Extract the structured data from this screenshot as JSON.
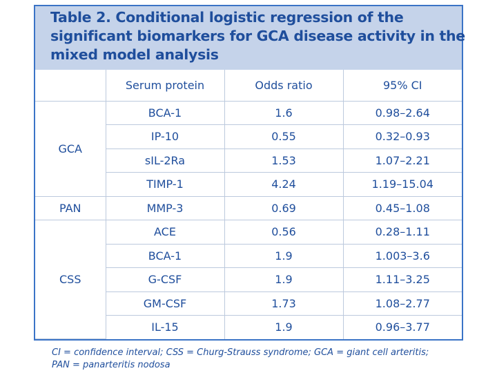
{
  "title": {
    "lines": [
      "Table 2. Conditional logistic regression of the",
      "significant biomarkers for GCA disease activity in the",
      "mixed model analysis"
    ]
  },
  "table": {
    "headers": [
      "",
      "Serum protein",
      "Odds ratio",
      "95% CI"
    ],
    "groups": [
      {
        "name": "GCA",
        "rows": [
          [
            "BCA-1",
            "1.6",
            "0.98–2.64"
          ],
          [
            "IP-10",
            "0.55",
            "0.32–0.93"
          ],
          [
            "sIL-2Ra",
            "1.53",
            "1.07–2.21"
          ],
          [
            "TIMP-1",
            "4.24",
            "1.19–15.04"
          ]
        ]
      },
      {
        "name": "PAN",
        "rows": [
          [
            "MMP-3",
            "0.69",
            "0.45–1.08"
          ]
        ]
      },
      {
        "name": "CSS",
        "rows": [
          [
            "ACE",
            "0.56",
            "0.28–1.11"
          ],
          [
            "BCA-1",
            "1.9",
            "1.003–3.6"
          ],
          [
            "G-CSF",
            "1.9",
            "1.11–3.25"
          ],
          [
            "GM-CSF",
            "1.73",
            "1.08–2.77"
          ],
          [
            "IL-15",
            "1.9",
            "0.96–3.77"
          ]
        ]
      }
    ]
  },
  "footnote": {
    "lines": [
      "CI = confidence interval; CSS = Churg-Strauss syndrome; GCA = giant cell arteritis;",
      "PAN = panarteritis nodosa"
    ]
  },
  "colors": {
    "text": "#1f4e9c",
    "panel": "#c5d3ea",
    "border": "#3a73c6",
    "grid": "#bcc9dd"
  }
}
